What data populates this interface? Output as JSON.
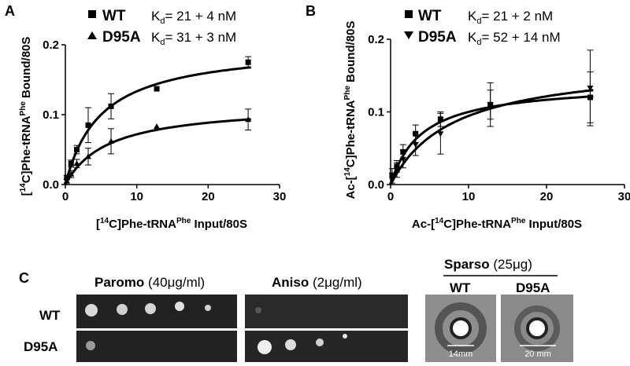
{
  "panel_labels": {
    "a": "A",
    "b": "B",
    "c": "C"
  },
  "chart_data": [
    {
      "type": "scatter",
      "panel": "A",
      "xlabel_parts": {
        "pre": "[",
        "sup1": "14",
        "mid": "C]Phe-tRNA",
        "sup2": "Phe",
        "post": " Input/80S"
      },
      "ylabel_parts": {
        "pre": "[",
        "sup1": "14",
        "mid": "C]Phe-tRNA",
        "sup2": "Phe",
        "post": " Bound/80S"
      },
      "xlim": [
        0,
        30
      ],
      "ylim": [
        0,
        0.2
      ],
      "x_ticks": [
        0,
        10,
        20,
        30
      ],
      "y_ticks": [
        0.0,
        0.1,
        0.2
      ],
      "y_tick_labels": [
        "0.0",
        "0.1",
        "0.2"
      ],
      "legend_position": "top-left",
      "series": [
        {
          "name": "WT",
          "kd_text": "21 + 4 nM",
          "marker": "square",
          "bmax": 0.2,
          "kd": 5,
          "points": [
            {
              "x": 0.2,
              "y": 0.01,
              "err": 0.003
            },
            {
              "x": 0.8,
              "y": 0.03,
              "err": 0.005
            },
            {
              "x": 1.6,
              "y": 0.05,
              "err": 0.006
            },
            {
              "x": 3.2,
              "y": 0.085,
              "err": 0.025
            },
            {
              "x": 6.4,
              "y": 0.112,
              "err": 0.018
            },
            {
              "x": 12.8,
              "y": 0.137,
              "err": 0.0
            },
            {
              "x": 25.6,
              "y": 0.175,
              "err": 0.008
            }
          ]
        },
        {
          "name": "D95A",
          "kd_text": "31 + 3 nM",
          "marker": "triangle-up",
          "bmax": 0.115,
          "kd": 6,
          "points": [
            {
              "x": 0.2,
              "y": 0.005,
              "err": 0.003
            },
            {
              "x": 0.8,
              "y": 0.015,
              "err": 0.005
            },
            {
              "x": 1.6,
              "y": 0.03,
              "err": 0.006
            },
            {
              "x": 3.2,
              "y": 0.04,
              "err": 0.012
            },
            {
              "x": 6.4,
              "y": 0.062,
              "err": 0.018
            },
            {
              "x": 12.8,
              "y": 0.083,
              "err": 0.0
            },
            {
              "x": 25.6,
              "y": 0.093,
              "err": 0.015
            }
          ]
        }
      ]
    },
    {
      "type": "scatter",
      "panel": "B",
      "xlabel_parts": {
        "pre": "Ac-[",
        "sup1": "14",
        "mid": "C]Phe-tRNA",
        "sup2": "Phe",
        "post": " Input/80S"
      },
      "ylabel_parts": {
        "pre": "Ac-[",
        "sup1": "14",
        "mid": "C]Phe-tRNA",
        "sup2": "Phe",
        "post": " Bound/80S"
      },
      "xlim": [
        0,
        30
      ],
      "ylim": [
        0,
        0.2
      ],
      "x_ticks": [
        0,
        10,
        20,
        30
      ],
      "y_ticks": [
        0.0,
        0.1,
        0.2
      ],
      "y_tick_labels": [
        "0.0",
        "0.1",
        "0.2"
      ],
      "legend_position": "top-left",
      "series": [
        {
          "name": "WT",
          "kd_text": "21 + 2 nM",
          "marker": "square",
          "bmax": 0.14,
          "kd": 4,
          "points": [
            {
              "x": 0.2,
              "y": 0.012,
              "err": 0.01
            },
            {
              "x": 0.8,
              "y": 0.025,
              "err": 0.008
            },
            {
              "x": 1.6,
              "y": 0.045,
              "err": 0.01
            },
            {
              "x": 3.2,
              "y": 0.07,
              "err": 0.012
            },
            {
              "x": 6.4,
              "y": 0.09,
              "err": 0.01
            },
            {
              "x": 12.8,
              "y": 0.11,
              "err": 0.02
            },
            {
              "x": 25.6,
              "y": 0.12,
              "err": 0.035
            }
          ]
        },
        {
          "name": "D95A",
          "kd_text": "52 + 14 nM",
          "marker": "triangle-down",
          "bmax": 0.17,
          "kd": 8,
          "points": [
            {
              "x": 0.2,
              "y": 0.008,
              "err": 0.008
            },
            {
              "x": 0.8,
              "y": 0.02,
              "err": 0.01
            },
            {
              "x": 1.6,
              "y": 0.035,
              "err": 0.012
            },
            {
              "x": 3.2,
              "y": 0.055,
              "err": 0.015
            },
            {
              "x": 6.4,
              "y": 0.07,
              "err": 0.028
            },
            {
              "x": 12.8,
              "y": 0.11,
              "err": 0.03
            },
            {
              "x": 25.6,
              "y": 0.133,
              "err": 0.052
            }
          ]
        }
      ]
    }
  ],
  "panel_c": {
    "rows": [
      "WT",
      "D95A"
    ],
    "paromo": {
      "name": "Paromo",
      "conc": "40",
      "unit": "g/ml"
    },
    "aniso": {
      "name": "Aniso",
      "conc": "2",
      "unit": "g/ml"
    },
    "sparso": {
      "name": "Sparso",
      "conc": "25",
      "unit": "g)"
    },
    "mu": "μ",
    "sparso_cols": [
      "WT",
      "D95A"
    ],
    "scale_labels": [
      "14mm",
      "20 mm"
    ],
    "colors": {
      "plate": "#222222",
      "colony": "#e8e8e8",
      "halo_bg": "#8c8c8c",
      "halo_ring": "#2e2e2e"
    }
  }
}
